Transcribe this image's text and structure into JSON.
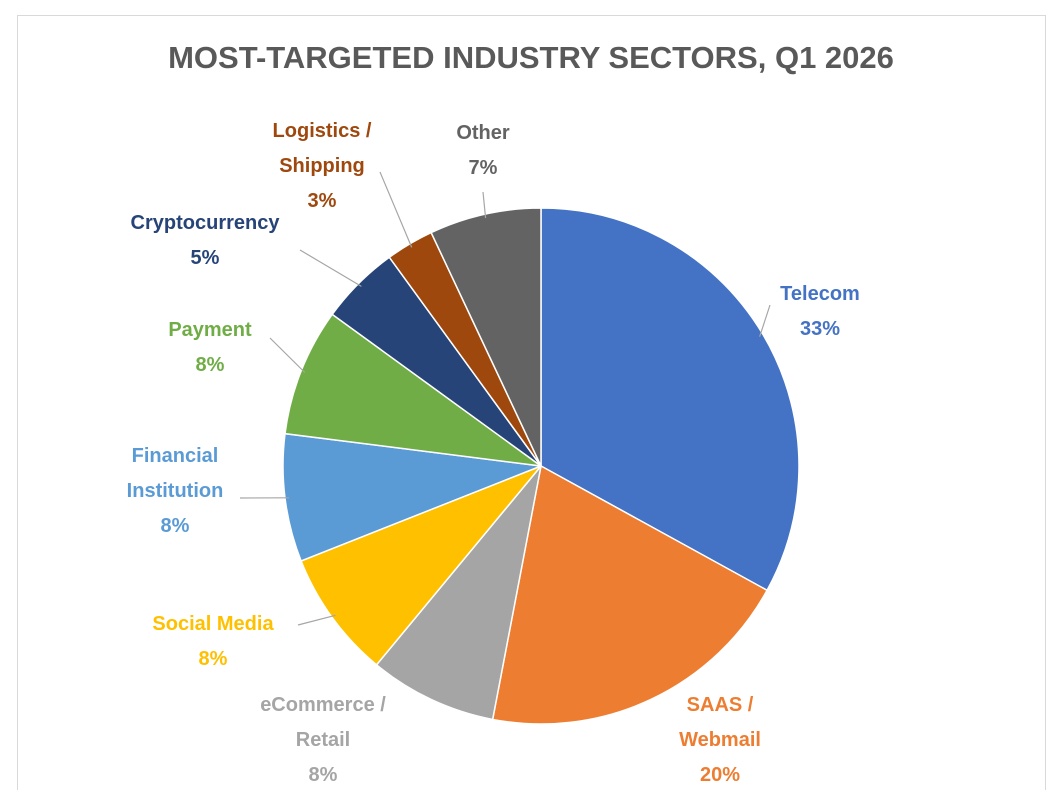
{
  "chart_data": {
    "type": "pie",
    "title": "MOST-TARGETED INDUSTRY SECTORS, Q1 2026",
    "categories": [
      "Telecom",
      "SAAS / Webmail",
      "eCommerce / Retail",
      "Social Media",
      "Financial Institution",
      "Payment",
      "Cryptocurrency",
      "Logistics / Shipping",
      "Other"
    ],
    "values": [
      33,
      20,
      8,
      8,
      8,
      8,
      5,
      3,
      7
    ],
    "value_labels": [
      "33%",
      "20%",
      "8%",
      "8%",
      "8%",
      "8%",
      "5%",
      "3%",
      "7%"
    ],
    "colors": [
      "#4472c4",
      "#ed7d31",
      "#a5a5a5",
      "#ffc000",
      "#5b9bd5",
      "#70ad47",
      "#264478",
      "#9e480e",
      "#636363"
    ]
  }
}
